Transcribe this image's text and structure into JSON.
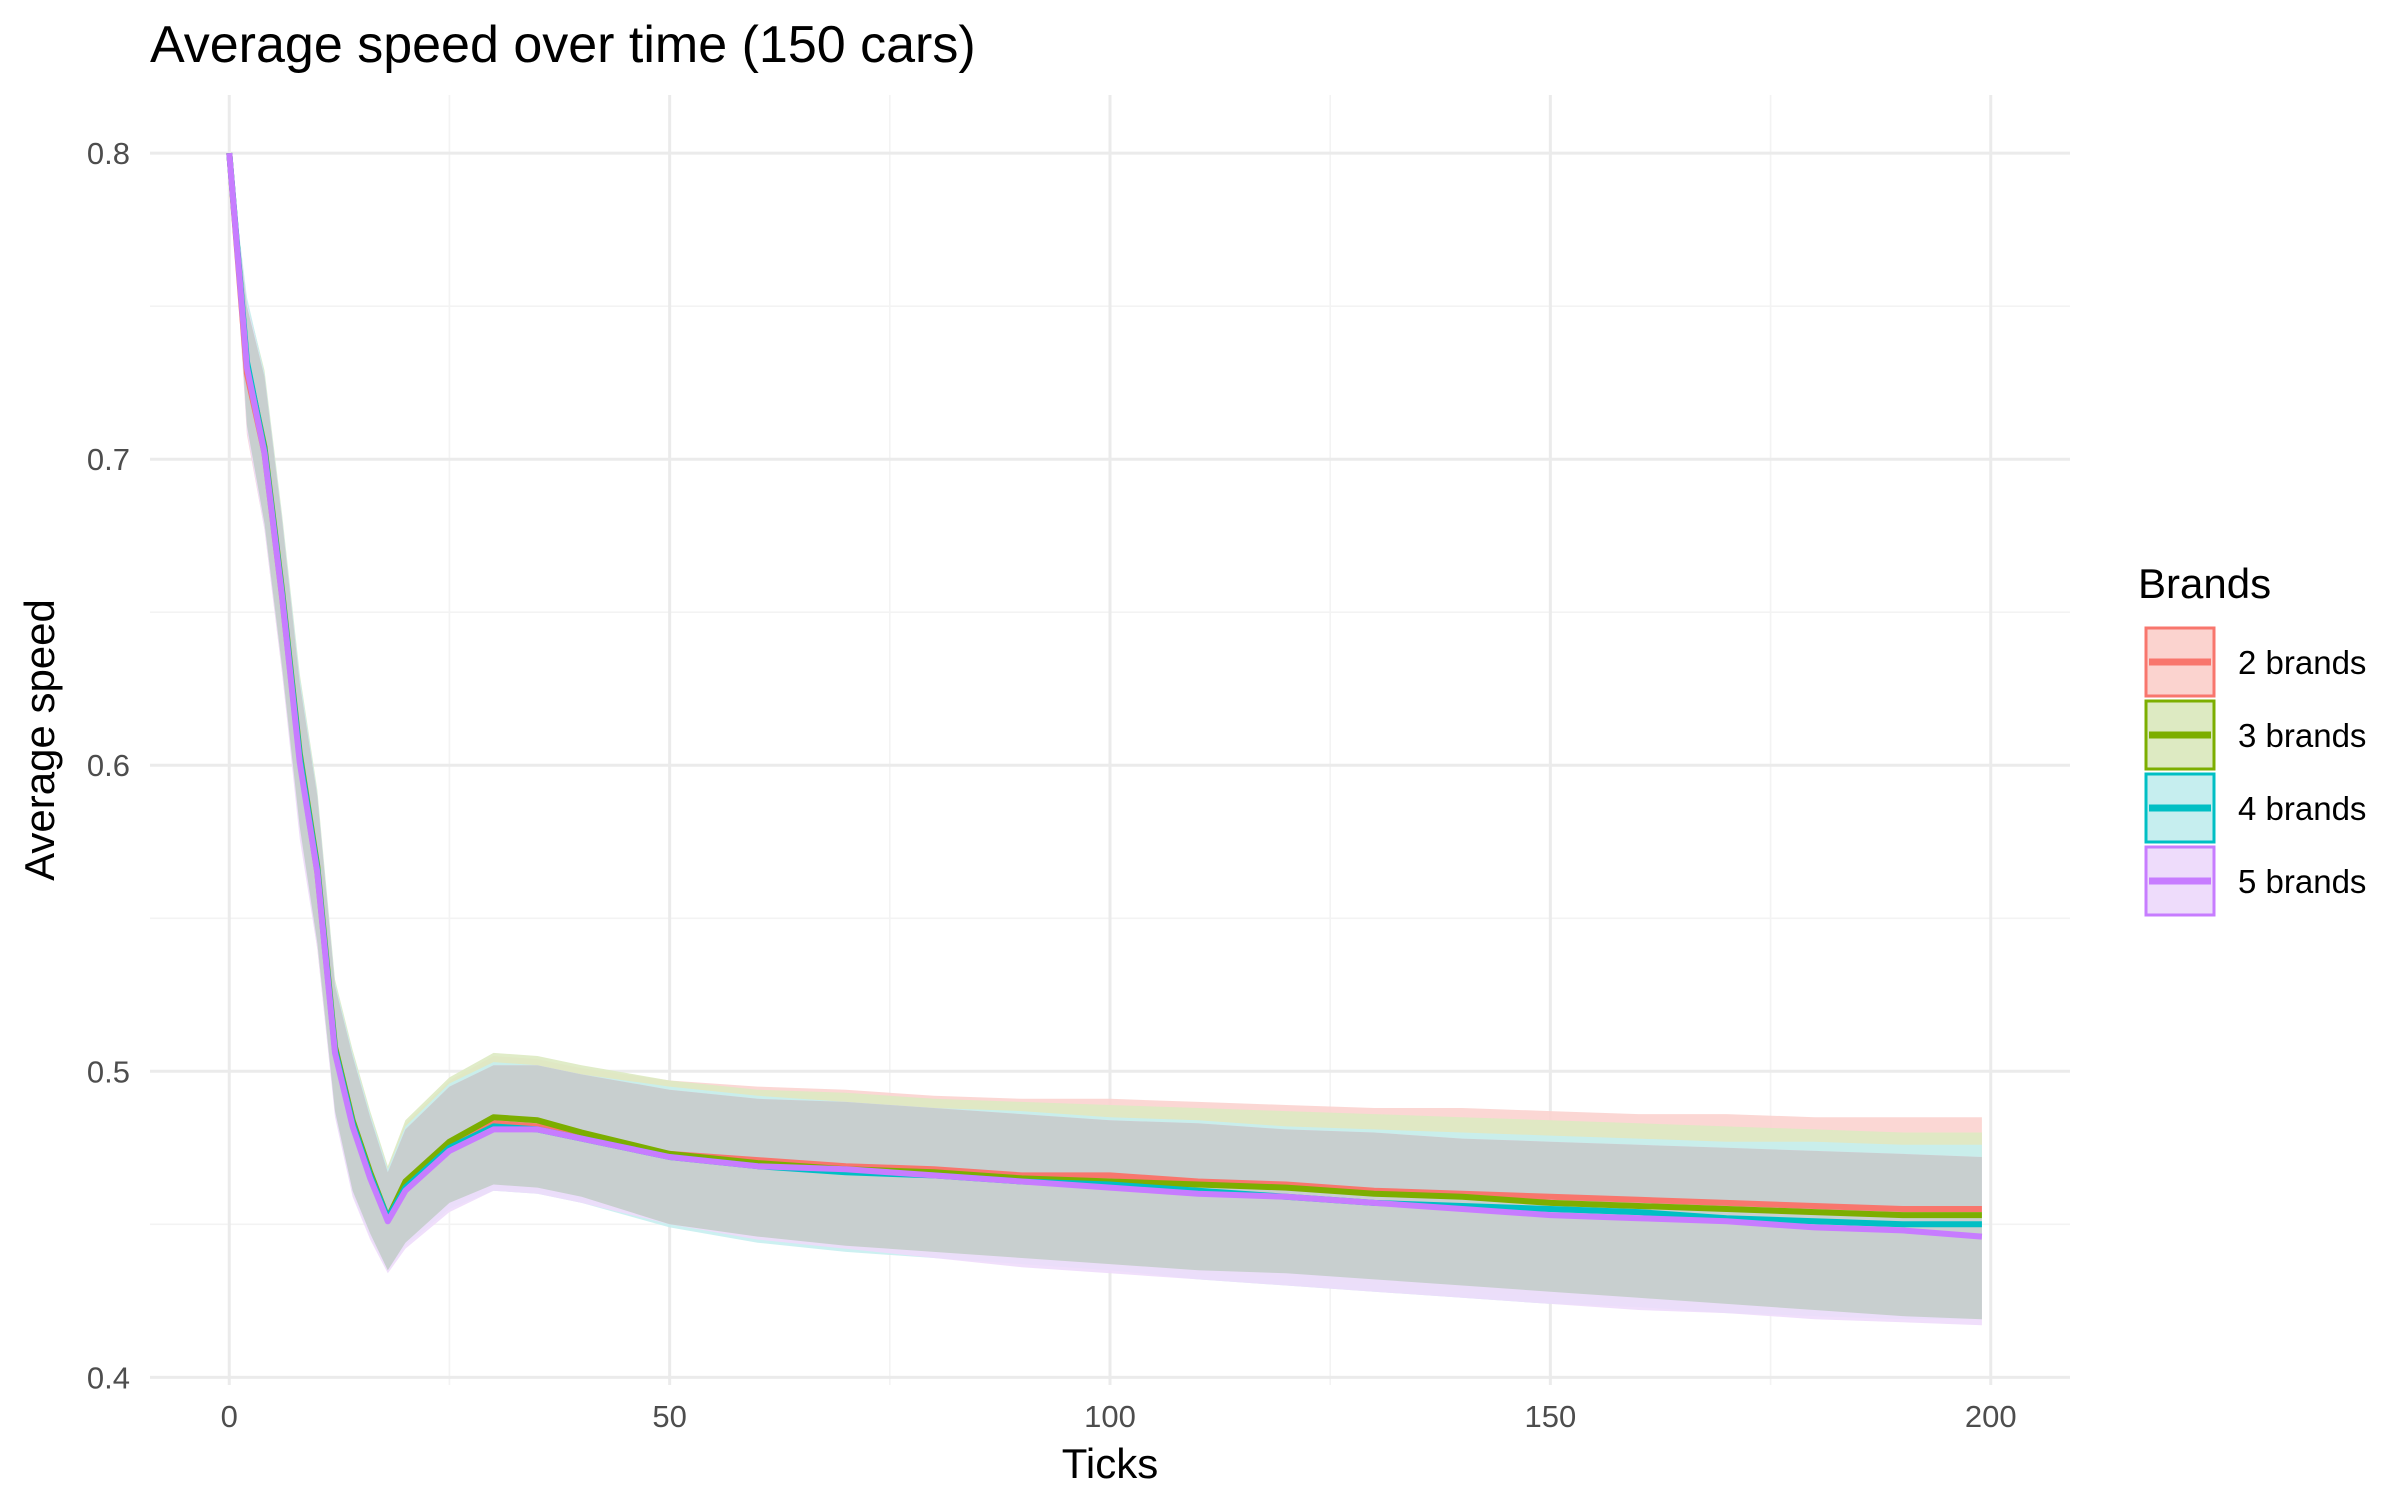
{
  "chart_data": {
    "type": "line",
    "title": "Average speed over time (150 cars)",
    "xlabel": "Ticks",
    "ylabel": "Average speed",
    "xlim": [
      -9,
      209
    ],
    "ylim": [
      0.3975,
      0.819
    ],
    "x_ticks": [
      0,
      50,
      100,
      150,
      200
    ],
    "y_ticks": [
      0.4,
      0.5,
      0.6,
      0.7,
      0.8
    ],
    "x_tick_labels": [
      "0",
      "50",
      "100",
      "150",
      "200"
    ],
    "y_tick_labels": [
      "0.4",
      "0.5",
      "0.6",
      "0.7",
      "0.8"
    ],
    "grid": true,
    "legend": {
      "title": "Brands",
      "position": "right"
    },
    "x": [
      0,
      2,
      4,
      6,
      8,
      10,
      12,
      14,
      16,
      18,
      20,
      25,
      30,
      35,
      40,
      50,
      60,
      70,
      80,
      90,
      100,
      110,
      120,
      130,
      140,
      150,
      160,
      170,
      180,
      190,
      199
    ],
    "series": [
      {
        "name": "2 brands",
        "color": "#F8766D",
        "band_fill": "#FBD3CF",
        "values": [
          0.8,
          0.728,
          0.702,
          0.655,
          0.602,
          0.565,
          0.507,
          0.483,
          0.466,
          0.452,
          0.463,
          0.476,
          0.483,
          0.482,
          0.479,
          0.473,
          0.471,
          0.469,
          0.468,
          0.466,
          0.466,
          0.464,
          0.463,
          0.461,
          0.46,
          0.459,
          0.458,
          0.457,
          0.456,
          0.455,
          0.455
        ],
        "upper": [
          0.8,
          0.75,
          0.727,
          0.68,
          0.628,
          0.59,
          0.529,
          0.506,
          0.486,
          0.468,
          0.483,
          0.497,
          0.505,
          0.504,
          0.501,
          0.497,
          0.495,
          0.494,
          0.492,
          0.491,
          0.491,
          0.49,
          0.489,
          0.488,
          0.488,
          0.487,
          0.486,
          0.486,
          0.485,
          0.485,
          0.485
        ],
        "lower": [
          0.8,
          0.708,
          0.677,
          0.63,
          0.578,
          0.54,
          0.486,
          0.46,
          0.446,
          0.435,
          0.444,
          0.456,
          0.462,
          0.461,
          0.458,
          0.45,
          0.446,
          0.443,
          0.441,
          0.439,
          0.437,
          0.435,
          0.434,
          0.432,
          0.43,
          0.428,
          0.426,
          0.424,
          0.422,
          0.42,
          0.419
        ]
      },
      {
        "name": "3 brands",
        "color": "#7CAE00",
        "band_fill": "#DDEAC2",
        "values": [
          0.8,
          0.731,
          0.704,
          0.657,
          0.604,
          0.567,
          0.508,
          0.484,
          0.467,
          0.452,
          0.464,
          0.477,
          0.485,
          0.484,
          0.48,
          0.473,
          0.47,
          0.468,
          0.467,
          0.465,
          0.464,
          0.463,
          0.462,
          0.46,
          0.459,
          0.457,
          0.456,
          0.455,
          0.454,
          0.453,
          0.453
        ],
        "upper": [
          0.8,
          0.752,
          0.729,
          0.682,
          0.63,
          0.592,
          0.53,
          0.507,
          0.487,
          0.469,
          0.484,
          0.498,
          0.506,
          0.505,
          0.502,
          0.497,
          0.494,
          0.493,
          0.491,
          0.49,
          0.489,
          0.488,
          0.487,
          0.486,
          0.485,
          0.484,
          0.483,
          0.482,
          0.481,
          0.48,
          0.48
        ],
        "lower": [
          0.8,
          0.71,
          0.679,
          0.632,
          0.58,
          0.542,
          0.487,
          0.461,
          0.447,
          0.435,
          0.444,
          0.457,
          0.463,
          0.462,
          0.459,
          0.45,
          0.445,
          0.442,
          0.44,
          0.438,
          0.436,
          0.434,
          0.432,
          0.43,
          0.428,
          0.426,
          0.424,
          0.422,
          0.421,
          0.42,
          0.419
        ]
      },
      {
        "name": "4 brands",
        "color": "#00BFC4",
        "band_fill": "#C6EEEF",
        "values": [
          0.8,
          0.732,
          0.703,
          0.656,
          0.603,
          0.566,
          0.507,
          0.483,
          0.466,
          0.452,
          0.462,
          0.475,
          0.482,
          0.481,
          0.478,
          0.472,
          0.469,
          0.467,
          0.466,
          0.464,
          0.463,
          0.461,
          0.459,
          0.457,
          0.456,
          0.455,
          0.454,
          0.452,
          0.451,
          0.45,
          0.45
        ],
        "upper": [
          0.8,
          0.753,
          0.728,
          0.681,
          0.629,
          0.591,
          0.529,
          0.506,
          0.486,
          0.468,
          0.482,
          0.496,
          0.503,
          0.502,
          0.499,
          0.495,
          0.492,
          0.49,
          0.488,
          0.487,
          0.485,
          0.484,
          0.482,
          0.481,
          0.48,
          0.479,
          0.478,
          0.477,
          0.477,
          0.476,
          0.476
        ],
        "lower": [
          0.8,
          0.711,
          0.678,
          0.631,
          0.579,
          0.541,
          0.486,
          0.46,
          0.446,
          0.435,
          0.443,
          0.455,
          0.461,
          0.46,
          0.457,
          0.449,
          0.444,
          0.441,
          0.439,
          0.437,
          0.435,
          0.432,
          0.43,
          0.428,
          0.426,
          0.424,
          0.423,
          0.421,
          0.42,
          0.419,
          0.419
        ]
      },
      {
        "name": "5 brands",
        "color": "#C77CFF",
        "band_fill": "#EEDCFB",
        "values": [
          0.8,
          0.73,
          0.702,
          0.655,
          0.601,
          0.565,
          0.506,
          0.482,
          0.465,
          0.451,
          0.461,
          0.474,
          0.481,
          0.481,
          0.478,
          0.472,
          0.469,
          0.468,
          0.466,
          0.464,
          0.462,
          0.46,
          0.459,
          0.457,
          0.455,
          0.453,
          0.452,
          0.451,
          0.449,
          0.448,
          0.446
        ],
        "upper": [
          0.8,
          0.751,
          0.727,
          0.68,
          0.627,
          0.59,
          0.528,
          0.505,
          0.485,
          0.467,
          0.481,
          0.495,
          0.502,
          0.502,
          0.499,
          0.494,
          0.491,
          0.49,
          0.488,
          0.486,
          0.484,
          0.483,
          0.481,
          0.48,
          0.478,
          0.477,
          0.476,
          0.475,
          0.474,
          0.473,
          0.472
        ],
        "lower": [
          0.8,
          0.709,
          0.677,
          0.63,
          0.576,
          0.54,
          0.485,
          0.459,
          0.445,
          0.434,
          0.442,
          0.454,
          0.461,
          0.46,
          0.457,
          0.45,
          0.445,
          0.442,
          0.439,
          0.436,
          0.434,
          0.432,
          0.43,
          0.428,
          0.426,
          0.424,
          0.422,
          0.421,
          0.419,
          0.418,
          0.417
        ]
      }
    ],
    "overlap_band_color": "#C8CFCF"
  }
}
